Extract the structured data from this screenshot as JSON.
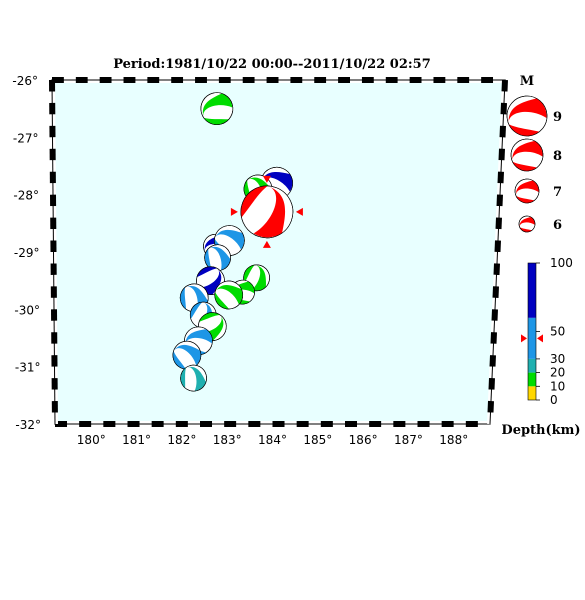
{
  "title": "Period:1981/10/22 00:00--2011/10/22 02:57",
  "lon_ticks": [
    "180°",
    "181°",
    "182°",
    "183°",
    "184°",
    "185°",
    "186°",
    "187°",
    "188°"
  ],
  "lat_ticks": [
    "-26°",
    "-27°",
    "-28°",
    "-29°",
    "-30°",
    "-31°",
    "-32°"
  ],
  "magnitude_legend": {
    "heading": "M",
    "items": [
      {
        "label": "9",
        "magnitude": 9
      },
      {
        "label": "8",
        "magnitude": 8
      },
      {
        "label": "7",
        "magnitude": 7
      },
      {
        "label": "6",
        "magnitude": 6
      }
    ]
  },
  "depth_legend": {
    "heading": "Depth(km)",
    "ticks": [
      "100",
      "50",
      "30",
      "20",
      "10",
      "0"
    ],
    "marker_depth": 45
  },
  "colors": {
    "ocean": "#e8ffff",
    "deep": "#0000c0",
    "intermediate": "#1e96e6",
    "shallow": "#00dc00",
    "very_shallow": "#ffd700",
    "teal": "#20b0b0",
    "highlight": "#ff0000"
  },
  "events": [
    {
      "lon": 182.7,
      "lat": -26.5,
      "depth": 18,
      "mag": 5.8
    },
    {
      "lon": 184.0,
      "lat": -27.8,
      "depth": 80,
      "mag": 5.8
    },
    {
      "lon": 183.6,
      "lat": -27.9,
      "depth": 18,
      "mag": 5.6
    },
    {
      "lon": 183.75,
      "lat": -28.1,
      "depth": 35,
      "mag": 5.5
    },
    {
      "lon": 183.55,
      "lat": -28.3,
      "depth": 18,
      "mag": 5.3
    },
    {
      "lon": 182.7,
      "lat": -28.9,
      "depth": 80,
      "mag": 5.4
    },
    {
      "lon": 183.0,
      "lat": -28.8,
      "depth": 35,
      "mag": 5.7
    },
    {
      "lon": 182.75,
      "lat": -29.1,
      "depth": 35,
      "mag": 5.5
    },
    {
      "lon": 183.6,
      "lat": -29.45,
      "depth": 18,
      "mag": 5.5
    },
    {
      "lon": 182.6,
      "lat": -29.5,
      "depth": 75,
      "mag": 5.6
    },
    {
      "lon": 183.3,
      "lat": -29.7,
      "depth": 18,
      "mag": 5.4
    },
    {
      "lon": 183.0,
      "lat": -29.75,
      "depth": 18,
      "mag": 5.6
    },
    {
      "lon": 182.25,
      "lat": -29.8,
      "depth": 35,
      "mag": 5.6
    },
    {
      "lon": 182.45,
      "lat": -30.1,
      "depth": 35,
      "mag": 5.5
    },
    {
      "lon": 182.65,
      "lat": -30.3,
      "depth": 18,
      "mag": 5.6
    },
    {
      "lon": 182.35,
      "lat": -30.55,
      "depth": 35,
      "mag": 5.6
    },
    {
      "lon": 182.1,
      "lat": -30.8,
      "depth": 35,
      "mag": 5.6
    },
    {
      "lon": 182.25,
      "lat": -31.2,
      "depth": 25,
      "mag": 5.5
    },
    {
      "lon": 183.8,
      "lat": -28.3,
      "depth": 45,
      "mag": 6.8,
      "highlight": true
    }
  ]
}
